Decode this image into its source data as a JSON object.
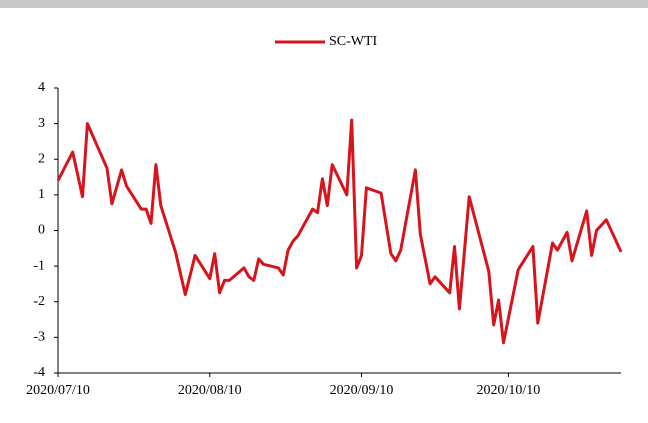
{
  "chart_data": {
    "type": "line",
    "x": [
      "2020/07/10",
      "2020/07/13",
      "2020/07/15",
      "2020/07/16",
      "2020/07/20",
      "2020/07/21",
      "2020/07/23",
      "2020/07/24",
      "2020/07/27",
      "2020/07/28",
      "2020/07/29",
      "2020/07/30",
      "2020/07/31",
      "2020/08/03",
      "2020/08/05",
      "2020/08/07",
      "2020/08/10",
      "2020/08/11",
      "2020/08/12",
      "2020/08/13",
      "2020/08/14",
      "2020/08/17",
      "2020/08/18",
      "2020/08/19",
      "2020/08/20",
      "2020/08/21",
      "2020/08/24",
      "2020/08/25",
      "2020/08/26",
      "2020/08/27",
      "2020/08/28",
      "2020/08/31",
      "2020/09/01",
      "2020/09/02",
      "2020/09/03",
      "2020/09/04",
      "2020/09/07",
      "2020/09/08",
      "2020/09/09",
      "2020/09/10",
      "2020/09/11",
      "2020/09/14",
      "2020/09/16",
      "2020/09/17",
      "2020/09/18",
      "2020/09/21",
      "2020/09/22",
      "2020/09/24",
      "2020/09/25",
      "2020/09/28",
      "2020/09/29",
      "2020/09/30",
      "2020/10/02",
      "2020/10/06",
      "2020/10/07",
      "2020/10/08",
      "2020/10/09",
      "2020/10/12",
      "2020/10/15",
      "2020/10/16",
      "2020/10/19",
      "2020/10/20",
      "2020/10/22",
      "2020/10/23",
      "2020/10/26",
      "2020/10/27",
      "2020/10/28",
      "2020/10/30",
      "2020/11/02"
    ],
    "series": [
      {
        "name": "SC-WTI",
        "color": "#d7141c",
        "values": [
          1.4,
          2.2,
          0.95,
          3.0,
          1.75,
          0.75,
          1.7,
          1.25,
          0.6,
          0.6,
          0.2,
          1.85,
          0.7,
          -0.6,
          -1.8,
          -0.7,
          -1.35,
          -0.65,
          -1.75,
          -1.4,
          -1.4,
          -1.05,
          -1.3,
          -1.4,
          -0.8,
          -0.95,
          -1.05,
          -1.25,
          -0.55,
          -0.3,
          -0.15,
          0.6,
          0.5,
          1.45,
          0.7,
          1.85,
          1.0,
          3.1,
          -1.05,
          -0.7,
          1.2,
          1.05,
          -0.65,
          -0.85,
          -0.55,
          1.7,
          -0.1,
          -1.5,
          -1.3,
          -1.75,
          -0.45,
          -2.2,
          0.95,
          -1.15,
          -2.65,
          -1.95,
          -3.15,
          -1.1,
          -0.45,
          -2.6,
          -0.35,
          -0.55,
          -0.05,
          -0.85,
          0.55,
          -0.7,
          0.0,
          0.3,
          -0.6
        ]
      }
    ],
    "xlim": [
      "2020/07/10",
      "2020/11/02"
    ],
    "xticks": [
      "2020/07/10",
      "2020/08/10",
      "2020/09/10",
      "2020/10/10"
    ],
    "ylim": [
      -4,
      4
    ],
    "yticks": [
      -4,
      -3,
      -2,
      -1,
      0,
      1,
      2,
      3,
      4
    ],
    "legend": "top"
  }
}
